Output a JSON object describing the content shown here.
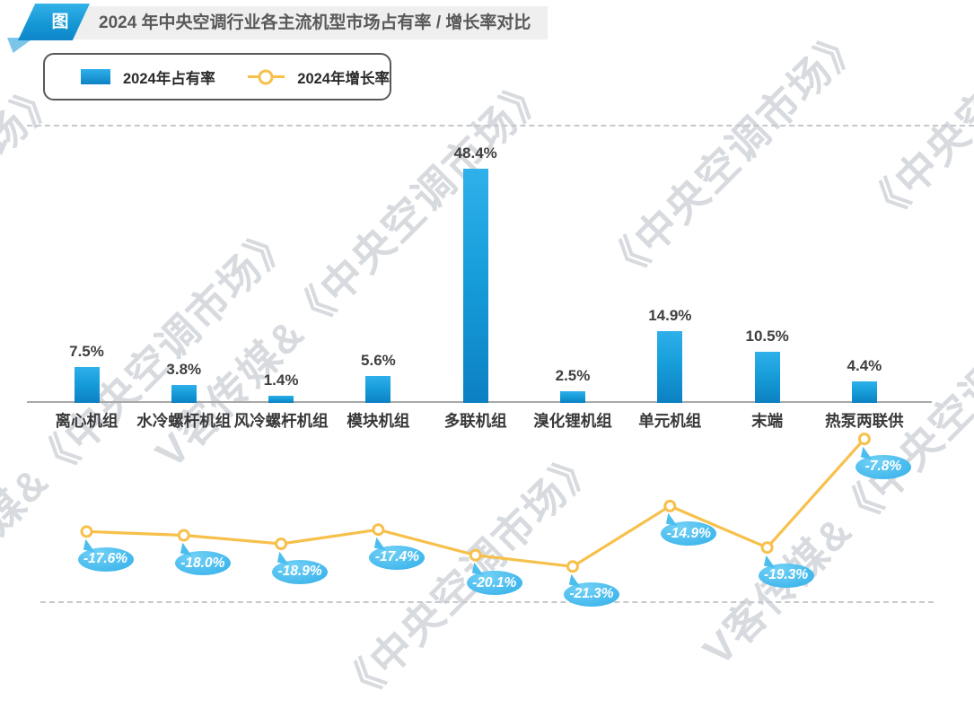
{
  "header": {
    "badge": "图",
    "title": "2024 年中央空调行业各主流机型市场占有率 / 增长率对比"
  },
  "legend": {
    "share_label": "2024年占有率",
    "growth_label": "2024年增长率"
  },
  "watermark": {
    "full": "V客传媒&《中央空调市场》",
    "magazine": "《中央空调市场》"
  },
  "colors": {
    "bar_top": "#2FB0EA",
    "bar_bottom": "#0C80C3",
    "line": "#F7C04B",
    "bubble": "#41B7EC",
    "axis": "#A8A8A8",
    "label_text": "#3F3F3F",
    "title_bg": "#EFEFEF",
    "badge_blue": "#1598D6",
    "watermark": "#D7DADE"
  },
  "chart_data": {
    "type": "bar",
    "title": "2024 年中央空调行业各主流机型市场占有率 / 增长率对比",
    "categories": [
      "离心机组",
      "水冷螺杆机组",
      "风冷螺杆机组",
      "模块机组",
      "多联机组",
      "溴化锂机组",
      "单元机组",
      "末端",
      "热泵两联供"
    ],
    "series": [
      {
        "name": "2024年占有率",
        "type": "bar",
        "unit": "%",
        "values": [
          7.5,
          3.8,
          1.4,
          5.6,
          48.4,
          2.5,
          14.9,
          10.5,
          4.4
        ]
      },
      {
        "name": "2024年增长率",
        "type": "line",
        "unit": "%",
        "values": [
          -17.6,
          -18.0,
          -18.9,
          -17.4,
          -20.1,
          -21.3,
          -14.9,
          -19.3,
          -7.8
        ]
      }
    ],
    "value_labels_shown": true,
    "grid": false,
    "legend_position": "top-left",
    "xlabel": "",
    "ylabel": ""
  }
}
